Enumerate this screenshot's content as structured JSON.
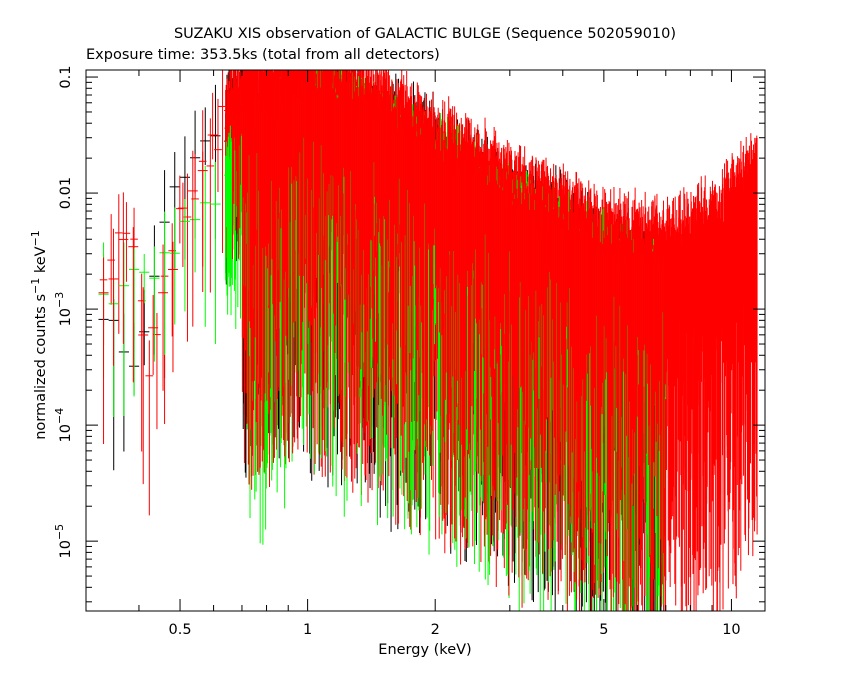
{
  "chart_data": {
    "type": "scatter",
    "title": "SUZAKU XIS observation of GALACTIC BULGE (Sequence 502059010)",
    "subtitle": "Exposure time: 353.5ks (total from all detectors)",
    "xlabel": "Energy (keV)",
    "ylabel": "normalized counts s^-1 keV^-1",
    "xscale": "log",
    "yscale": "log",
    "xlim": [
      0.3,
      12
    ],
    "ylim": [
      2.5e-06,
      0.115
    ],
    "x_tick_labels": [
      "0.5",
      "1",
      "2",
      "5",
      "10"
    ],
    "x_tick_values": [
      0.5,
      1,
      2,
      5,
      10
    ],
    "y_tick_labels": [
      "0.1",
      "0.01",
      "10^-3",
      "10^-4",
      "10^-5"
    ],
    "y_tick_values": [
      0.1,
      0.01,
      0.001,
      0.0001,
      1e-05
    ],
    "legend": "none",
    "grid": false,
    "series": [
      {
        "color": "#000000",
        "points": [
          {
            "x": 0.33,
            "y": 0.0012
          },
          {
            "x": 0.4,
            "y": 0.0002
          },
          {
            "x": 0.45,
            "y": 0.005
          },
          {
            "x": 0.55,
            "y": 0.03
          },
          {
            "x": 0.7,
            "y": 0.05
          },
          {
            "x": 1.0,
            "y": 0.07
          },
          {
            "x": 1.5,
            "y": 0.03
          },
          {
            "x": 2.0,
            "y": 0.02
          },
          {
            "x": 3.0,
            "y": 0.006
          },
          {
            "x": 4.0,
            "y": 0.004
          },
          {
            "x": 5.0,
            "y": 0.0025
          },
          {
            "x": 7.0,
            "y": 0.0012
          }
        ]
      },
      {
        "color": "#ff0000",
        "points": [
          {
            "x": 0.33,
            "y": 0.0015
          },
          {
            "x": 0.38,
            "y": 0.007
          },
          {
            "x": 0.42,
            "y": 0.0003
          },
          {
            "x": 0.5,
            "y": 0.005
          },
          {
            "x": 0.6,
            "y": 0.03
          },
          {
            "x": 0.7,
            "y": 0.06
          },
          {
            "x": 1.0,
            "y": 0.08
          },
          {
            "x": 1.5,
            "y": 0.04
          },
          {
            "x": 2.0,
            "y": 0.02
          },
          {
            "x": 3.0,
            "y": 0.008
          },
          {
            "x": 4.0,
            "y": 0.005
          },
          {
            "x": 5.0,
            "y": 0.003
          },
          {
            "x": 7.0,
            "y": 0.0025
          },
          {
            "x": 9.0,
            "y": 0.004
          },
          {
            "x": 10.0,
            "y": 0.006
          },
          {
            "x": 11.5,
            "y": 0.01
          }
        ]
      },
      {
        "color": "#00ff00",
        "points": [
          {
            "x": 0.33,
            "y": 0.0013
          },
          {
            "x": 0.45,
            "y": 0.002
          },
          {
            "x": 0.55,
            "y": 0.006
          },
          {
            "x": 0.7,
            "y": 0.02
          },
          {
            "x": 1.0,
            "y": 0.05
          },
          {
            "x": 1.5,
            "y": 0.025
          },
          {
            "x": 2.0,
            "y": 0.015
          },
          {
            "x": 3.0,
            "y": 0.006
          },
          {
            "x": 4.0,
            "y": 0.003
          },
          {
            "x": 5.0,
            "y": 0.002
          },
          {
            "x": 7.0,
            "y": 0.0013
          }
        ]
      }
    ]
  }
}
